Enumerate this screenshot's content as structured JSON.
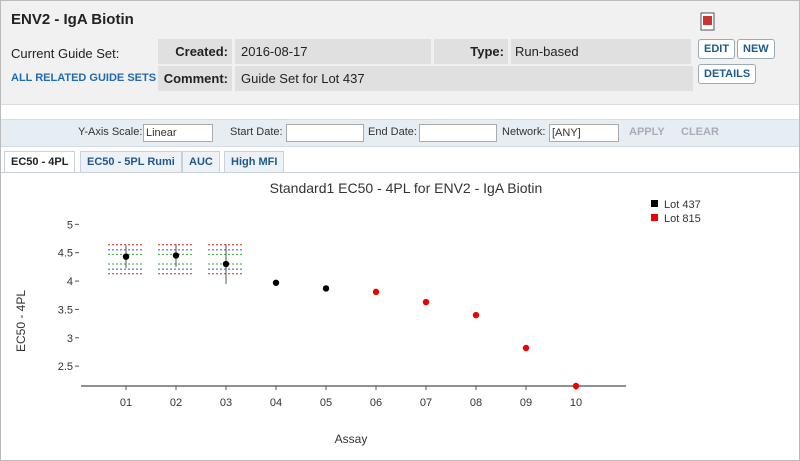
{
  "header": {
    "title": "ENV2 - IgA Biotin",
    "guide_set_label": "Current Guide Set:",
    "related_link": "ALL RELATED GUIDE SETS",
    "created_label": "Created:",
    "created": "2016-08-17",
    "type_label": "Type:",
    "type": "Run-based",
    "comment_label": "Comment:",
    "comment": "Guide Set for Lot 437",
    "buttons": [
      "EDIT",
      "NEW",
      "DETAILS"
    ]
  },
  "toolbar": {
    "y_axis_label": "Y-Axis Scale:",
    "y_axis_value": "Linear",
    "start_label": "Start Date:",
    "end_label": "End Date:",
    "network_label": "Network:",
    "network_value": "[ANY]",
    "apply": "APPLY",
    "clear": "CLEAR"
  },
  "tabs": [
    "EC50 - 4PL",
    "EC50 - 5PL Rumi",
    "AUC",
    "High MFI"
  ],
  "chart_data": {
    "type": "scatter",
    "title": "Standard1 EC50 - 4PL for ENV2 - IgA Biotin",
    "x_label": "Assay",
    "y_label": "EC50 - 4PL",
    "categories": [
      "01",
      "02",
      "03",
      "04",
      "05",
      "06",
      "07",
      "08",
      "09",
      "10"
    ],
    "series": [
      {
        "name": "Lot 437",
        "color": "#000000",
        "values": [
          4.43,
          4.45,
          4.3,
          3.97,
          3.87,
          null,
          null,
          null,
          null,
          null
        ],
        "errors": [
          0.2,
          0.2,
          0.35,
          null,
          null,
          null,
          null,
          null,
          null,
          null
        ]
      },
      {
        "name": "Lot 815",
        "color": "#ee0000",
        "values": [
          null,
          null,
          null,
          null,
          null,
          3.81,
          3.63,
          3.4,
          2.82,
          2.15
        ]
      }
    ],
    "guide_lines": [
      {
        "value": 4.64,
        "color": "#e02020"
      },
      {
        "value": 4.55,
        "color": "#3355dd"
      },
      {
        "value": 4.47,
        "color": "#33aa33"
      },
      {
        "value": 4.3,
        "color": "#33aa33"
      },
      {
        "value": 4.21,
        "color": "#3355dd"
      },
      {
        "value": 4.13,
        "color": "#e02020"
      }
    ],
    "ylim": [
      2.15,
      5.2
    ],
    "yticks": [
      2.5,
      3,
      3.5,
      4,
      4.5,
      5
    ],
    "legend": "top-right"
  }
}
